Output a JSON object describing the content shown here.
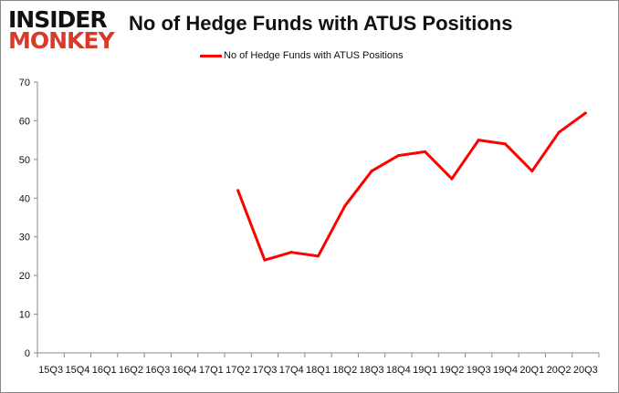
{
  "logo": {
    "line1": "INSIDER",
    "line2": "MONKEY"
  },
  "chart_data": {
    "type": "line",
    "title": "No of Hedge Funds with ATUS Positions",
    "categories": [
      "15Q3",
      "15Q4",
      "16Q1",
      "16Q2",
      "16Q3",
      "16Q4",
      "17Q1",
      "17Q2",
      "17Q3",
      "17Q4",
      "18Q1",
      "18Q2",
      "18Q3",
      "18Q4",
      "19Q1",
      "19Q2",
      "19Q3",
      "19Q4",
      "20Q1",
      "20Q2",
      "20Q3"
    ],
    "series": [
      {
        "name": "No of Hedge Funds with ATUS Positions",
        "color": "#ff0000",
        "values": [
          null,
          null,
          null,
          null,
          null,
          null,
          null,
          42,
          24,
          26,
          25,
          38,
          47,
          51,
          52,
          45,
          55,
          54,
          47,
          57,
          62
        ]
      }
    ],
    "ylim": [
      0,
      70
    ],
    "yticks": [
      0,
      10,
      20,
      30,
      40,
      50,
      60,
      70
    ],
    "grid": false,
    "legend": "top"
  }
}
